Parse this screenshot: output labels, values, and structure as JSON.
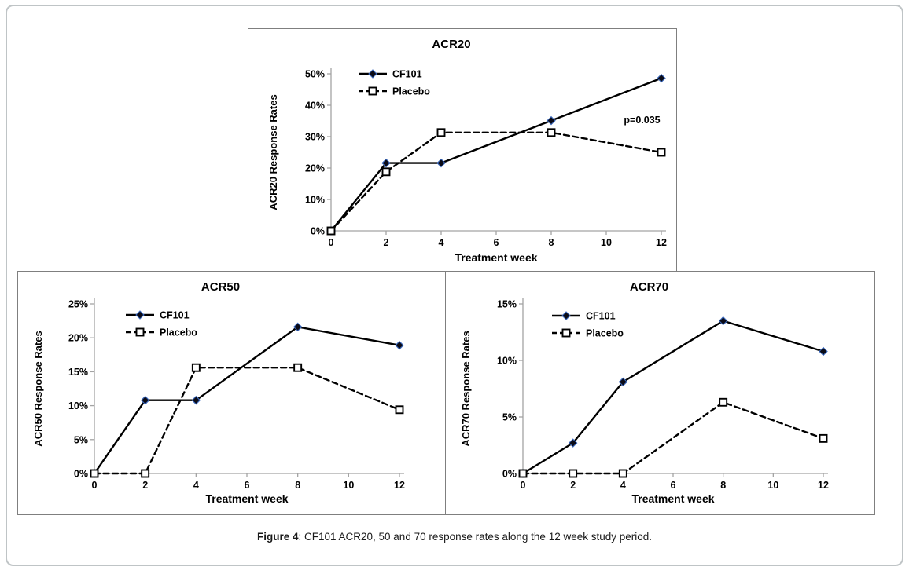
{
  "figure": {
    "caption_label": "Figure 4",
    "caption_text": ": CF101 ACR20, 50 and 70 response rates along the 12 week study period."
  },
  "colors": {
    "line": "#000000",
    "axis": "#a3a3a3",
    "diamond_fill": "#0b0b16",
    "diamond_edge": "#3a68bd",
    "square_fill": "#ffffff",
    "square_edge": "#000000",
    "panel_border": "#7f7f7f",
    "outer_border": "#bfc4c6",
    "text": "#000000"
  },
  "chart_data": [
    {
      "id": "acr20",
      "type": "line",
      "title": "ACR20",
      "xlabel": "Treatment week",
      "ylabel": "ACR20 Response Rates",
      "x": [
        0,
        2,
        4,
        8,
        12
      ],
      "xlim": [
        0,
        12
      ],
      "xticks": [
        0,
        2,
        4,
        6,
        8,
        10,
        12
      ],
      "ylim": [
        0,
        50
      ],
      "yticks": [
        0,
        10,
        20,
        30,
        40,
        50
      ],
      "ytick_suffix": "%",
      "grid": false,
      "legend_position": "top-left",
      "series": [
        {
          "name": "CF101",
          "line": "solid",
          "marker": "diamond",
          "values": [
            0,
            21.6,
            21.6,
            35.1,
            48.6
          ]
        },
        {
          "name": "Placebo",
          "line": "dashed",
          "marker": "open-square",
          "values": [
            0,
            18.8,
            31.3,
            31.3,
            25.0
          ]
        }
      ],
      "annotation": {
        "text": "p=0.035",
        "x_week": 11.3,
        "y_pct": 35.3
      }
    },
    {
      "id": "acr50",
      "type": "line",
      "title": "ACR50",
      "xlabel": "Treatment week",
      "ylabel": "ACR50 Response Rates",
      "x": [
        0,
        2,
        4,
        8,
        12
      ],
      "xlim": [
        0,
        12
      ],
      "xticks": [
        0,
        2,
        4,
        6,
        8,
        10,
        12
      ],
      "ylim": [
        0,
        25
      ],
      "yticks": [
        0,
        5,
        10,
        15,
        20,
        25
      ],
      "ytick_suffix": "%",
      "grid": false,
      "legend_position": "top-left",
      "series": [
        {
          "name": "CF101",
          "line": "solid",
          "marker": "diamond",
          "values": [
            0,
            10.8,
            10.8,
            21.6,
            18.9
          ]
        },
        {
          "name": "Placebo",
          "line": "dashed",
          "marker": "open-square",
          "values": [
            0,
            0,
            15.6,
            15.6,
            9.4
          ]
        }
      ],
      "annotation": null
    },
    {
      "id": "acr70",
      "type": "line",
      "title": "ACR70",
      "xlabel": "Treatment week",
      "ylabel": "ACR70 Response Rates",
      "x": [
        0,
        2,
        4,
        8,
        12
      ],
      "xlim": [
        0,
        12
      ],
      "xticks": [
        0,
        2,
        4,
        6,
        8,
        10,
        12
      ],
      "ylim": [
        0,
        15
      ],
      "yticks": [
        0,
        5,
        10,
        15
      ],
      "ytick_suffix": "%",
      "grid": false,
      "legend_position": "top-left",
      "series": [
        {
          "name": "CF101",
          "line": "solid",
          "marker": "diamond",
          "values": [
            0,
            2.7,
            8.1,
            13.5,
            10.8
          ]
        },
        {
          "name": "Placebo",
          "line": "dashed",
          "marker": "open-square",
          "values": [
            0,
            0,
            0,
            6.3,
            3.1
          ]
        }
      ],
      "annotation": null
    }
  ]
}
